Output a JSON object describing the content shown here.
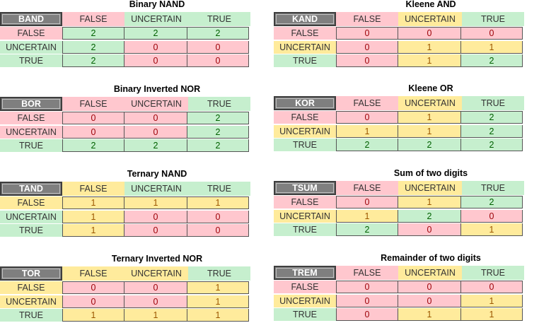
{
  "tables": [
    {
      "title": "Binary NAND",
      "op": "BAND",
      "header_colors": [
        "pink",
        "green",
        "green"
      ],
      "row_label_colors": [
        "pink",
        "green",
        "green"
      ],
      "values": [
        [
          "2",
          "2",
          "2"
        ],
        [
          "2",
          "0",
          "0"
        ],
        [
          "2",
          "0",
          "0"
        ]
      ],
      "cell_colors": [
        [
          "green",
          "green",
          "green"
        ],
        [
          "green",
          "pink",
          "pink"
        ],
        [
          "green",
          "pink",
          "pink"
        ]
      ]
    },
    {
      "title": "Kleene AND",
      "op": "KAND",
      "header_colors": [
        "pink",
        "yellow",
        "green"
      ],
      "row_label_colors": [
        "pink",
        "yellow",
        "green"
      ],
      "values": [
        [
          "0",
          "0",
          "0"
        ],
        [
          "0",
          "1",
          "1"
        ],
        [
          "0",
          "1",
          "2"
        ]
      ],
      "cell_colors": [
        [
          "pink",
          "pink",
          "pink"
        ],
        [
          "pink",
          "yellow",
          "yellow"
        ],
        [
          "pink",
          "yellow",
          "green"
        ]
      ]
    },
    {
      "title": "Binary Inverted NOR",
      "op": "BOR",
      "header_colors": [
        "pink",
        "pink",
        "green"
      ],
      "row_label_colors": [
        "pink",
        "pink",
        "green"
      ],
      "values": [
        [
          "0",
          "0",
          "2"
        ],
        [
          "0",
          "0",
          "2"
        ],
        [
          "2",
          "2",
          "2"
        ]
      ],
      "cell_colors": [
        [
          "pink",
          "pink",
          "green"
        ],
        [
          "pink",
          "pink",
          "green"
        ],
        [
          "green",
          "green",
          "green"
        ]
      ]
    },
    {
      "title": "Kleene OR",
      "op": "KOR",
      "header_colors": [
        "pink",
        "yellow",
        "green"
      ],
      "row_label_colors": [
        "pink",
        "yellow",
        "green"
      ],
      "values": [
        [
          "0",
          "1",
          "2"
        ],
        [
          "1",
          "1",
          "2"
        ],
        [
          "2",
          "2",
          "2"
        ]
      ],
      "cell_colors": [
        [
          "pink",
          "yellow",
          "green"
        ],
        [
          "yellow",
          "yellow",
          "green"
        ],
        [
          "green",
          "green",
          "green"
        ]
      ]
    },
    {
      "title": "Ternary NAND",
      "op": "TAND",
      "header_colors": [
        "yellow",
        "green",
        "green"
      ],
      "row_label_colors": [
        "yellow",
        "green",
        "green"
      ],
      "values": [
        [
          "1",
          "1",
          "1"
        ],
        [
          "1",
          "0",
          "0"
        ],
        [
          "1",
          "0",
          "0"
        ]
      ],
      "cell_colors": [
        [
          "yellow",
          "yellow",
          "yellow"
        ],
        [
          "yellow",
          "pink",
          "pink"
        ],
        [
          "yellow",
          "pink",
          "pink"
        ]
      ]
    },
    {
      "title": "Sum of two digits",
      "op": "TSUM",
      "header_colors": [
        "pink",
        "yellow",
        "green"
      ],
      "row_label_colors": [
        "pink",
        "yellow",
        "green"
      ],
      "values": [
        [
          "0",
          "1",
          "2"
        ],
        [
          "1",
          "2",
          "0"
        ],
        [
          "2",
          "0",
          "1"
        ]
      ],
      "cell_colors": [
        [
          "pink",
          "yellow",
          "green"
        ],
        [
          "yellow",
          "green",
          "pink"
        ],
        [
          "green",
          "pink",
          "yellow"
        ]
      ]
    },
    {
      "title": "Ternary Inverted NOR",
      "op": "TOR",
      "header_colors": [
        "yellow",
        "yellow",
        "green"
      ],
      "row_label_colors": [
        "yellow",
        "yellow",
        "green"
      ],
      "values": [
        [
          "0",
          "0",
          "1"
        ],
        [
          "0",
          "0",
          "1"
        ],
        [
          "1",
          "1",
          "1"
        ]
      ],
      "cell_colors": [
        [
          "pink",
          "pink",
          "yellow"
        ],
        [
          "pink",
          "pink",
          "yellow"
        ],
        [
          "yellow",
          "yellow",
          "yellow"
        ]
      ]
    },
    {
      "title": "Remainder of two digits",
      "op": "TREM",
      "header_colors": [
        "pink",
        "yellow",
        "green"
      ],
      "row_label_colors": [
        "pink",
        "yellow",
        "green"
      ],
      "values": [
        [
          "0",
          "0",
          "0"
        ],
        [
          "0",
          "0",
          "1"
        ],
        [
          "0",
          "1",
          "1"
        ]
      ],
      "cell_colors": [
        [
          "pink",
          "pink",
          "pink"
        ],
        [
          "pink",
          "pink",
          "yellow"
        ],
        [
          "pink",
          "yellow",
          "yellow"
        ]
      ]
    }
  ],
  "labels": [
    "FALSE",
    "UNCERTAIN",
    "TRUE"
  ]
}
